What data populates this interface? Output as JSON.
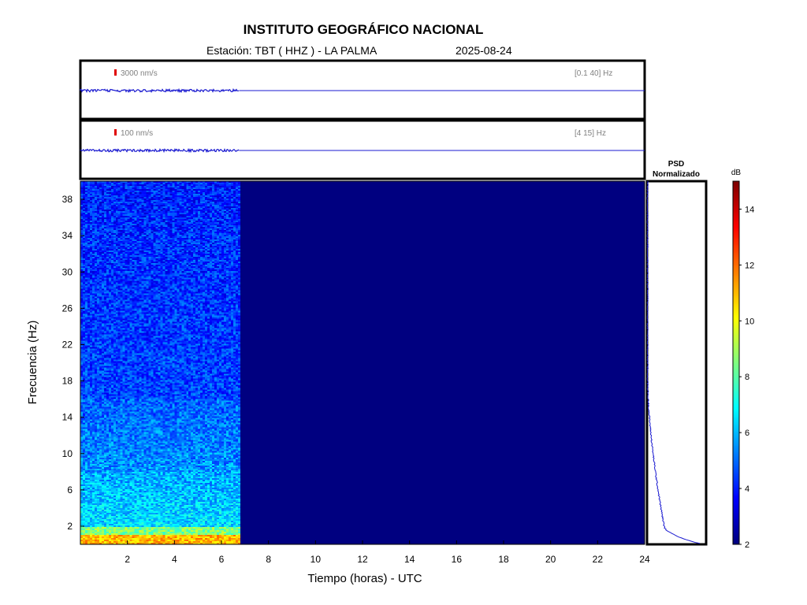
{
  "header": {
    "title": "INSTITUTO GEOGRÁFICO NACIONAL",
    "station": "Estación:  TBT ( HHZ ) - LA PALMA",
    "date": "2025-08-24"
  },
  "chart_data": {
    "type": "heatmap",
    "xlabel": "Tiempo (horas) - UTC",
    "ylabel": "Frecuencia  (Hz)",
    "xlim": [
      0,
      24
    ],
    "ylim": [
      0,
      40
    ],
    "xticks": [
      2,
      4,
      6,
      8,
      10,
      12,
      14,
      16,
      18,
      20,
      22,
      24
    ],
    "yticks": [
      2,
      6,
      10,
      14,
      18,
      22,
      26,
      30,
      34,
      38
    ],
    "data_end_hour": 6.75,
    "spectrogram_description_levels": {
      "band_0_1Hz_dB": 11,
      "band_1_2Hz_dB": 8.5,
      "band_2_8Hz_dB": 6.5,
      "band_8_16Hz_dB": 5.5,
      "band_16_40Hz_dB": 4.5,
      "no_data_dB": 2
    },
    "traces": [
      {
        "scale_label": "3000 nm/s",
        "filter_label": "[0.1 40] Hz"
      },
      {
        "scale_label": "100 nm/s",
        "filter_label": "[4 15] Hz"
      }
    ],
    "psd": {
      "title_line1": "PSD",
      "title_line2": "Normalizado"
    },
    "colorbar": {
      "label": "dB",
      "min": 2,
      "max": 15,
      "ticks": [
        2,
        4,
        6,
        8,
        10,
        12,
        14
      ]
    }
  }
}
